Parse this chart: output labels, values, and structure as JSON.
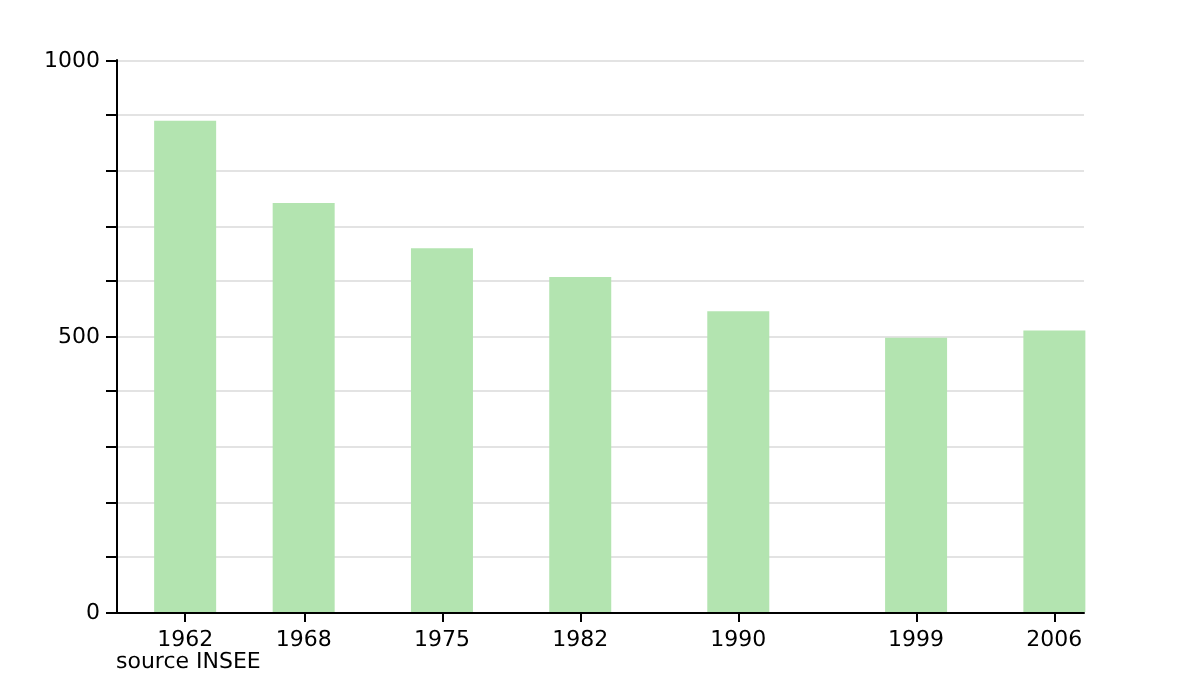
{
  "chart_data": {
    "type": "bar",
    "x": [
      1962,
      1968,
      1975,
      1982,
      1990,
      1999,
      2006
    ],
    "values": [
      890,
      741,
      659,
      607,
      545,
      497,
      510
    ],
    "color": "#b3e4b0",
    "xlim": [
      1958.5,
      2007.5
    ],
    "xticks": [
      1962,
      1968,
      1975,
      1982,
      1990,
      1999,
      2006
    ],
    "ylim": [
      0,
      1000
    ],
    "yticks": [
      0,
      {
        "value": 100,
        "label": null
      },
      {
        "value": 200,
        "label": null
      },
      {
        "value": 300,
        "label": null
      },
      {
        "value": 400,
        "label": null
      },
      500,
      {
        "value": 600,
        "label": null
      },
      {
        "value": 700,
        "label": null
      },
      {
        "value": 800,
        "label": null
      },
      {
        "value": 900,
        "label": null
      },
      1000
    ],
    "grid": "y",
    "annotations": [
      "source INSEE"
    ]
  }
}
